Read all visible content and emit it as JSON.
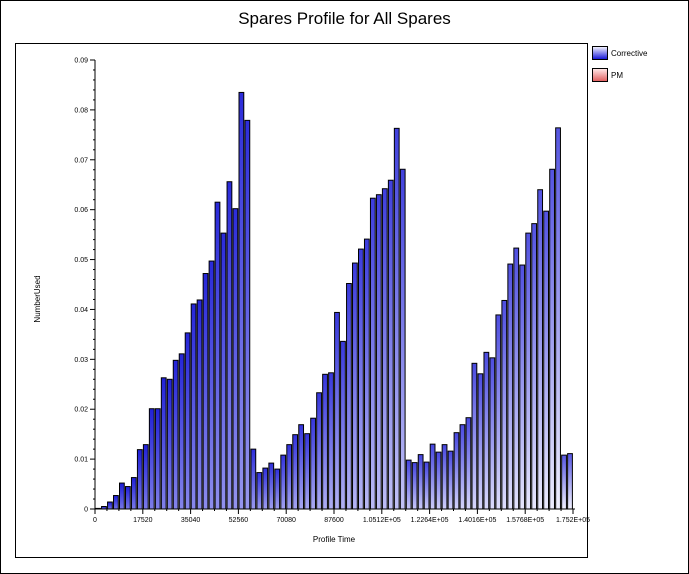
{
  "chart_data": {
    "type": "bar",
    "title": "Spares Profile for All Spares",
    "xlabel": "Profile Time",
    "ylabel": "NumberUsed",
    "ylim": [
      0,
      0.09
    ],
    "yticks": [
      "0",
      "0.01",
      "0.02",
      "0.03",
      "0.04",
      "0.05",
      "0.06",
      "0.07",
      "0.08",
      "0.09"
    ],
    "xlim": [
      0,
      175200
    ],
    "xticks": [
      "0",
      "17520",
      "35040",
      "52560",
      "70080",
      "87600",
      "1.0512E+05",
      "1.2264E+05",
      "1.4016E+05",
      "1.5768E+05",
      "1.752E+05"
    ],
    "legend_position": "right",
    "series": [
      {
        "name": "Corrective",
        "color_light": "#f2f2ff",
        "color_dark": "#1a1ad6",
        "values": [
          0.0001,
          0.0005,
          0.0014,
          0.0027,
          0.0052,
          0.0045,
          0.0063,
          0.0119,
          0.0129,
          0.0201,
          0.0201,
          0.0263,
          0.026,
          0.0298,
          0.0311,
          0.0353,
          0.0411,
          0.0419,
          0.0472,
          0.0497,
          0.0615,
          0.0553,
          0.0656,
          0.0602,
          0.0835,
          0.0779,
          0.012,
          0.0073,
          0.0082,
          0.0092,
          0.008,
          0.0108,
          0.0129,
          0.0149,
          0.0169,
          0.0151,
          0.0182,
          0.0233,
          0.027,
          0.0273,
          0.0394,
          0.0336,
          0.0452,
          0.0493,
          0.0521,
          0.0541,
          0.0623,
          0.063,
          0.0642,
          0.0659,
          0.0763,
          0.0681,
          0.0098,
          0.0093,
          0.0109,
          0.0094,
          0.013,
          0.0114,
          0.0129,
          0.0116,
          0.0153,
          0.0169,
          0.0183,
          0.0292,
          0.0271,
          0.0314,
          0.0303,
          0.0389,
          0.0418,
          0.0491,
          0.0523,
          0.0489,
          0.0553,
          0.0572,
          0.064,
          0.0597,
          0.0681,
          0.0764,
          0.0108,
          0.0111
        ]
      },
      {
        "name": "PM",
        "color_light": "#ffe6e6",
        "color_dark": "#e06060",
        "values": []
      }
    ]
  }
}
